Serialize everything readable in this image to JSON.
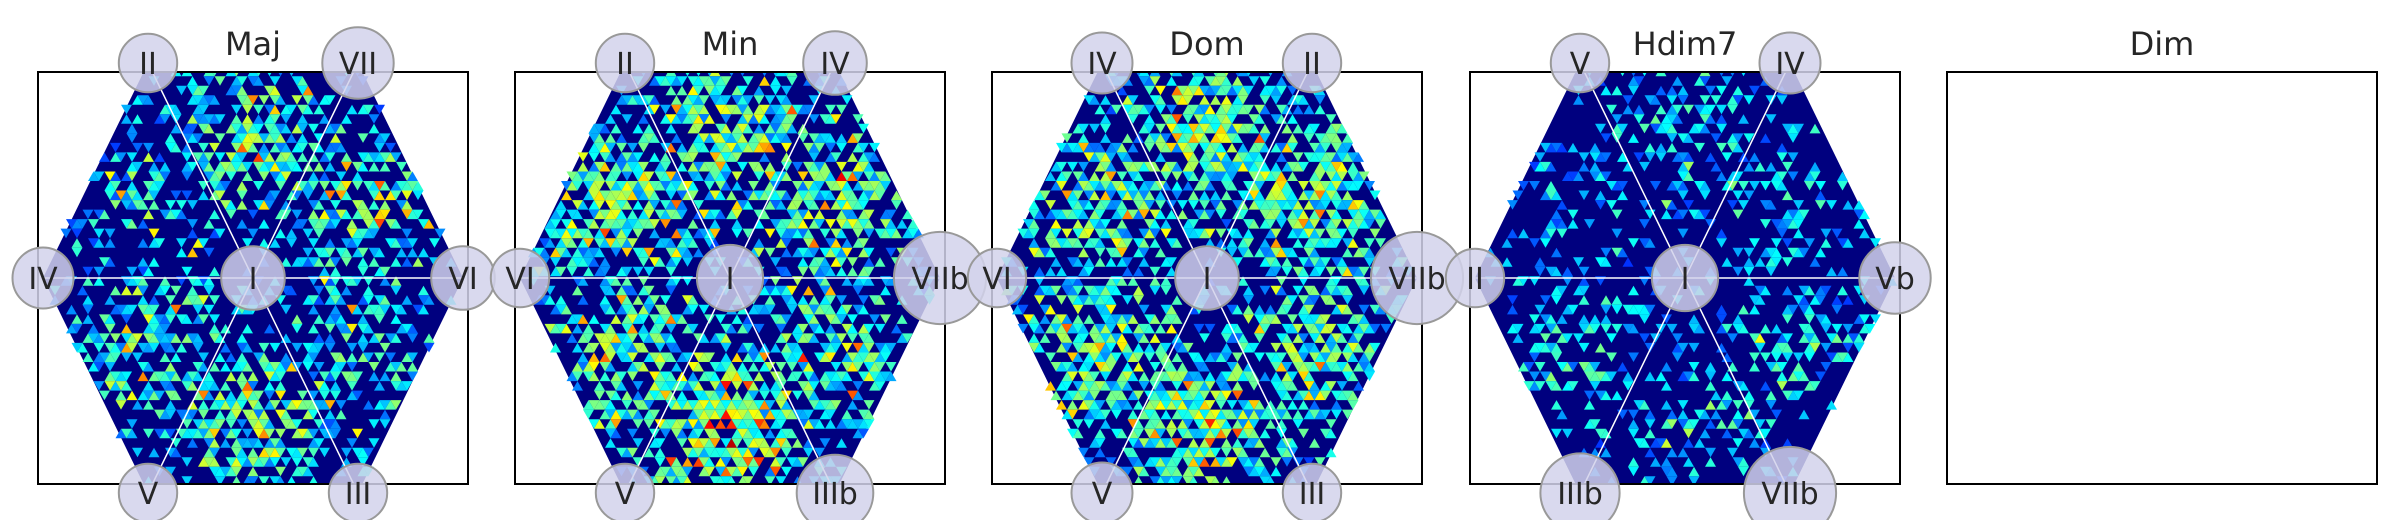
{
  "chart_data": [
    {
      "type": "heatmap",
      "title": "Maj",
      "seed": 11,
      "hotness": 1.0,
      "nodes": {
        "center": "I",
        "top_left": "II",
        "top_right": "VII",
        "left": "IV",
        "right": "VI",
        "bottom_left": "V",
        "bottom_right": "III"
      },
      "node_weight": {
        "center": 0.3,
        "top_left": 0.2,
        "top_right": 0.45,
        "left": 0.25,
        "right": 0.3,
        "bottom_left": 0.2,
        "bottom_right": 0.2
      },
      "sector_density": [
        0.55,
        0.6,
        0.35,
        0.5,
        0.65,
        0.45
      ],
      "empty": false
    },
    {
      "type": "heatmap",
      "title": "Min",
      "seed": 23,
      "hotness": 1.0,
      "nodes": {
        "center": "I",
        "top_left": "II",
        "top_right": "IV",
        "left": "VI",
        "right": "VIIb",
        "bottom_left": "V",
        "bottom_right": "IIIb"
      },
      "node_weight": {
        "center": 0.35,
        "top_left": 0.2,
        "top_right": 0.3,
        "left": 0.2,
        "right": 0.85,
        "bottom_left": 0.2,
        "bottom_right": 0.55
      },
      "sector_density": [
        0.7,
        0.65,
        0.7,
        0.65,
        0.8,
        0.6
      ],
      "empty": false
    },
    {
      "type": "heatmap",
      "title": "Dom",
      "seed": 37,
      "hotness": 0.8,
      "nodes": {
        "center": "I",
        "top_left": "IV",
        "top_right": "II",
        "left": "VI",
        "right": "VIIb",
        "bottom_left": "V",
        "bottom_right": "III"
      },
      "node_weight": {
        "center": 0.3,
        "top_left": 0.25,
        "top_right": 0.2,
        "left": 0.2,
        "right": 0.85,
        "bottom_left": 0.25,
        "bottom_right": 0.2
      },
      "sector_density": [
        0.7,
        0.7,
        0.65,
        0.7,
        0.75,
        0.65
      ],
      "empty": false
    },
    {
      "type": "heatmap",
      "title": "Hdim7",
      "seed": 53,
      "hotness": 0.6,
      "nodes": {
        "center": "I",
        "top_left": "V",
        "top_right": "IV",
        "left": "II",
        "right": "Vb",
        "bottom_left": "IIIb",
        "bottom_right": "VIIb"
      },
      "node_weight": {
        "center": 0.35,
        "top_left": 0.2,
        "top_right": 0.25,
        "left": 0.2,
        "right": 0.45,
        "bottom_left": 0.6,
        "bottom_right": 0.85
      },
      "sector_density": [
        0.3,
        0.35,
        0.25,
        0.4,
        0.3,
        0.35
      ],
      "empty": false
    },
    {
      "type": "heatmap",
      "title": "Dim",
      "empty": true
    }
  ]
}
